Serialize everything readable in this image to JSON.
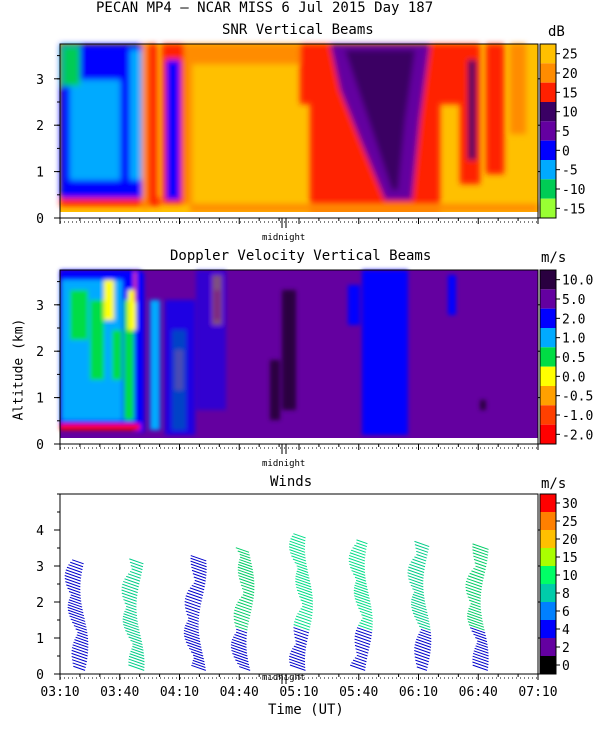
{
  "header": {
    "title": "PECAN MP4 – NCAR MISS   6 Jul 2015 Day 187"
  },
  "chart_data": [
    {
      "type": "heatmap",
      "title": "SNR Vertical Beams",
      "unit": "dB",
      "xlim": [
        3.1667,
        7.1667
      ],
      "ylim": [
        0,
        3.75
      ],
      "yticks": [
        "0",
        "1",
        "2",
        "3"
      ],
      "midnight_label": "midnight",
      "colorbar": {
        "labels": [
          "25",
          "20",
          "15",
          "10",
          "5",
          "0",
          "-5",
          "-10",
          "-15"
        ],
        "colors": [
          "#ffc000",
          "#ff8c00",
          "#ff2000",
          "#3a0064",
          "#6400a0",
          "#0000ff",
          "#00aaff",
          "#00cc55",
          "#99ff33"
        ]
      }
    },
    {
      "type": "heatmap",
      "title": "Doppler Velocity Vertical Beams",
      "unit": "m/s",
      "ylabel": "Altitude (km)",
      "xlim": [
        3.1667,
        7.1667
      ],
      "ylim": [
        0,
        3.75
      ],
      "yticks": [
        "0",
        "1",
        "2",
        "3"
      ],
      "midnight_label": "midnight",
      "colorbar": {
        "labels": [
          "10.0",
          "5.0",
          "2.0",
          "1.0",
          "0.5",
          "0.0",
          "-0.5",
          "-1.0",
          "-2.0"
        ],
        "colors": [
          "#2a0040",
          "#6400a0",
          "#0000ff",
          "#00aaff",
          "#00dd44",
          "#ffff00",
          "#ffa000",
          "#ff4000",
          "#ff0000"
        ]
      }
    },
    {
      "type": "scatter",
      "title": "Winds",
      "unit": "m/s",
      "xlabel": "Time (UT)",
      "xlim": [
        3.1667,
        7.1667
      ],
      "ylim": [
        0,
        5
      ],
      "yticks": [
        "0",
        "1",
        "2",
        "3",
        "4"
      ],
      "xticks": [
        "03:10",
        "03:40",
        "04:10",
        "04:40",
        "05:10",
        "05:40",
        "06:10",
        "06:40",
        "07:10"
      ],
      "midnight_label": "midnight",
      "colorbar": {
        "labels": [
          "30",
          "25",
          "20",
          "15",
          "10",
          "8",
          "6",
          "4",
          "2",
          "0"
        ],
        "colors": [
          "#ff0000",
          "#ff8000",
          "#ffc000",
          "#aaff00",
          "#00ff66",
          "#00ccaa",
          "#0080ff",
          "#0000ff",
          "#6400a0",
          "#000000"
        ]
      },
      "profiles": [
        {
          "time": 3.37,
          "ytop": 3.1,
          "color": "#0000cc"
        },
        {
          "time": 3.84,
          "ytop": 3.1,
          "color": "#00cc88"
        },
        {
          "time": 4.36,
          "ytop": 3.2,
          "color": "#0000cc"
        },
        {
          "time": 4.76,
          "ytop": 3.4,
          "color": "#00cc66"
        },
        {
          "time": 5.25,
          "ytop": 3.8,
          "color": "#00dd88"
        },
        {
          "time": 5.75,
          "ytop": 3.7,
          "color": "#00dd88"
        },
        {
          "time": 6.24,
          "ytop": 3.6,
          "color": "#00cc88"
        },
        {
          "time": 6.72,
          "ytop": 3.5,
          "color": "#00cc66"
        }
      ]
    }
  ]
}
